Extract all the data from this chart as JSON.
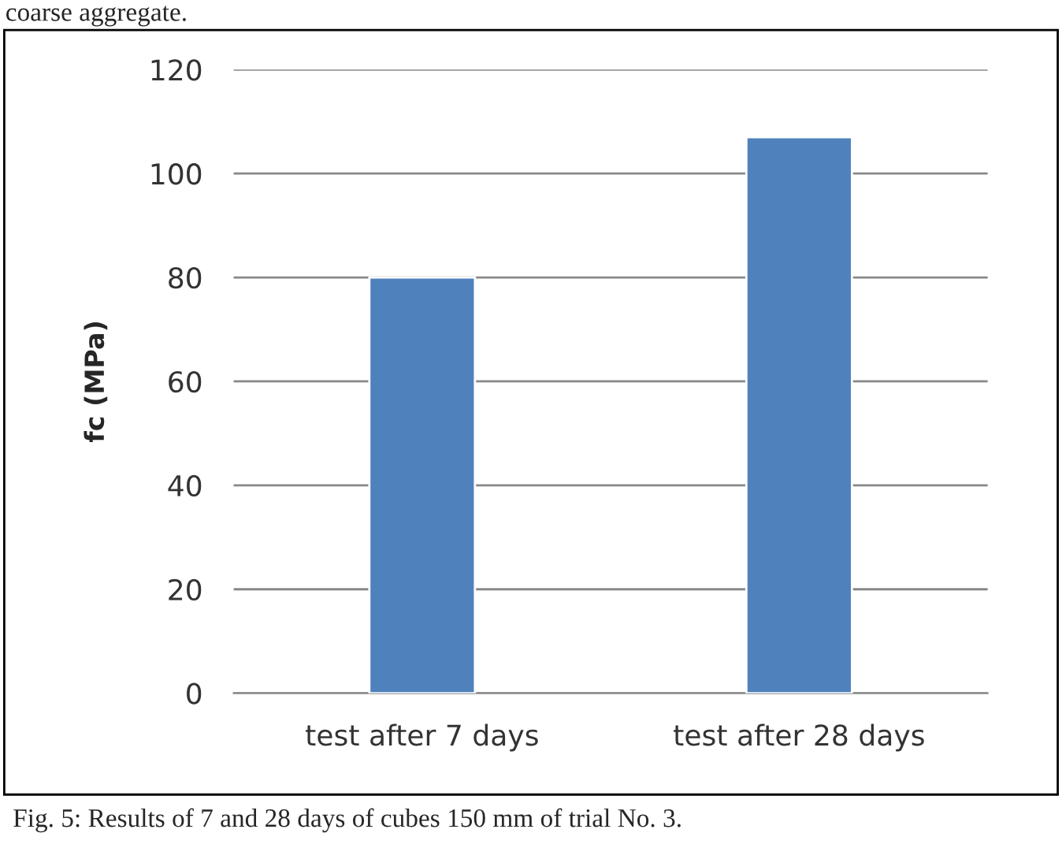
{
  "chart_data": {
    "type": "bar",
    "ylabel": "fc (MPa)",
    "categories": [
      "test after 7 days",
      "test after 28 days"
    ],
    "values": [
      80,
      107
    ],
    "color": "#4f81bd",
    "ylim": [
      0,
      120
    ],
    "yticks": [
      0,
      20,
      40,
      60,
      80,
      100,
      120
    ],
    "grid": "y",
    "legend": false,
    "annotations": [
      "coarse aggregate.",
      "Fig. 5: Results of 7 and 28 days of cubes 150 mm of trial No. 3."
    ]
  }
}
